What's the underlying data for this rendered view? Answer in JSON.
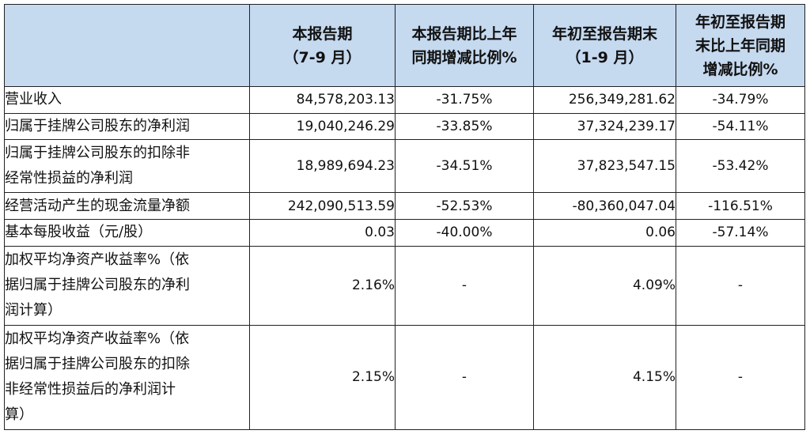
{
  "table": {
    "headers": [
      "",
      [
        "本报告期",
        "（7-9 月）"
      ],
      [
        "本报告期比上年",
        "同期增减比例%"
      ],
      [
        "年初至报告期末",
        "（1-9 月）"
      ],
      [
        "年初至报告期",
        "末比上年同期",
        "增减比例%"
      ]
    ],
    "rows": [
      {
        "label": [
          "营业收入"
        ],
        "values": [
          "84,578,203.13",
          "-31.75%",
          "256,349,281.62",
          "-34.79%"
        ]
      },
      {
        "label": [
          "归属于挂牌公司股东的净利润"
        ],
        "values": [
          "19,040,246.29",
          "-33.85%",
          "37,324,239.17",
          "-54.11%"
        ]
      },
      {
        "label": [
          "归属于挂牌公司股东的扣除非",
          "经常性损益的净利润"
        ],
        "values": [
          "18,989,694.23",
          "-34.51%",
          "37,823,547.15",
          "-53.42%"
        ]
      },
      {
        "label": [
          "经营活动产生的现金流量净额"
        ],
        "values": [
          "242,090,513.59",
          "-52.53%",
          "-80,360,047.04",
          "-116.51%"
        ]
      },
      {
        "label": [
          "基本每股收益（元/股）"
        ],
        "values": [
          "0.03",
          "-40.00%",
          "0.06",
          "-57.14%"
        ]
      },
      {
        "label": [
          "加权平均净资产收益率%（依",
          "据归属于挂牌公司股东的净利",
          "润计算）"
        ],
        "values": [
          "2.16%",
          "-",
          "4.09%",
          "-"
        ]
      },
      {
        "label": [
          "加权平均净资产收益率%（依",
          "据归属于挂牌公司股东的扣除",
          "非经常性损益后的净利润计",
          "算）"
        ],
        "values": [
          "2.15%",
          "-",
          "4.15%",
          "-"
        ]
      }
    ]
  }
}
